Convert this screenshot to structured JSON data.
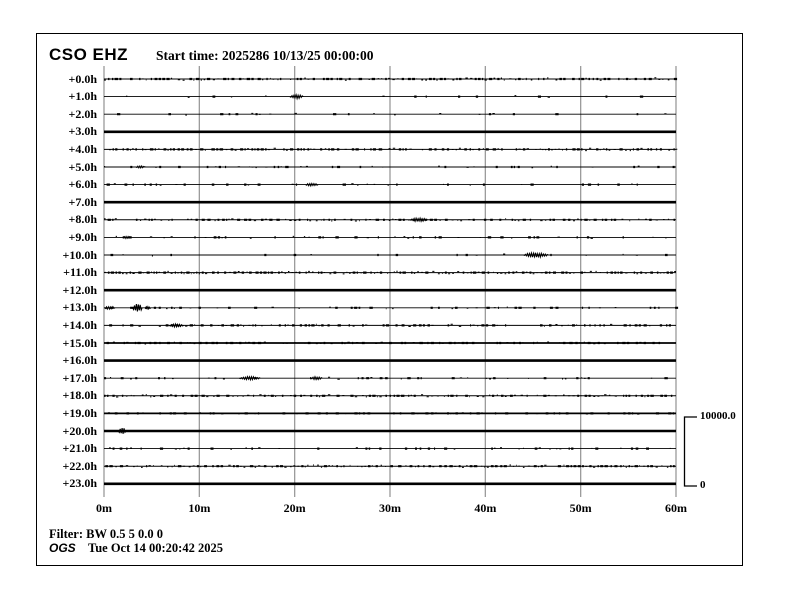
{
  "header": {
    "station": "CSO EHZ",
    "start_time_label": "Start time: 2025286 10/13/25 00:00:00"
  },
  "scale_bar": {
    "max_label": "10000.0",
    "min_label": "0"
  },
  "footer": {
    "filter_label": "Filter: BW 0.5 5 0.0 0",
    "agency": "OGS",
    "generated_at": "Tue Oct 14 00:20:42 2025"
  },
  "chart_data": {
    "type": "line",
    "subtype": "helicorder-24h",
    "title": "CSO EHZ",
    "start_time": "2025286 10/13/25 00:00:00",
    "x_ticks": [
      "0m",
      "10m",
      "20m",
      "30m",
      "40m",
      "50m",
      "60m"
    ],
    "x_range_minutes": [
      0,
      60
    ],
    "row_interval_hours": 1,
    "amplitude_scale": {
      "max": 10000.0,
      "min": 0
    },
    "grid": true,
    "legend_position": "none",
    "colors": {
      "trace": "#000000",
      "grid": "#9a9a9a",
      "background": "#ffffff"
    },
    "rows": [
      {
        "label": "+0.0h",
        "style": "noisy",
        "noise": 0.55,
        "amp": 1.2,
        "events": []
      },
      {
        "label": "+1.0h",
        "style": "thin",
        "noise": 0.06,
        "amp": 1.0,
        "events": [
          {
            "m": 20.2,
            "amp": 2.0,
            "w": 1.4
          }
        ]
      },
      {
        "label": "+2.0h",
        "style": "thin",
        "noise": 0.05,
        "amp": 1.0,
        "events": []
      },
      {
        "label": "+3.0h",
        "style": "bold",
        "noise": 0,
        "amp": 0,
        "events": []
      },
      {
        "label": "+4.0h",
        "style": "noisy",
        "noise": 0.5,
        "amp": 1.2,
        "events": []
      },
      {
        "label": "+5.0h",
        "style": "thin",
        "noise": 0.12,
        "amp": 1.0,
        "events": [
          {
            "m": 3.8,
            "amp": 1.2,
            "w": 0.9
          }
        ]
      },
      {
        "label": "+6.0h",
        "style": "thin",
        "noise": 0.12,
        "amp": 1.0,
        "events": [
          {
            "m": 21.8,
            "amp": 1.5,
            "w": 1.3
          }
        ]
      },
      {
        "label": "+7.0h",
        "style": "bold",
        "noise": 0,
        "amp": 0,
        "events": []
      },
      {
        "label": "+8.0h",
        "style": "noisy",
        "noise": 0.45,
        "amp": 1.2,
        "events": [
          {
            "m": 33.0,
            "amp": 1.8,
            "w": 1.8
          }
        ]
      },
      {
        "label": "+9.0h",
        "style": "thin",
        "noise": 0.1,
        "amp": 1.0,
        "events": [
          {
            "m": 2.4,
            "amp": 1.2,
            "w": 0.8
          }
        ]
      },
      {
        "label": "+10.0h",
        "style": "thin",
        "noise": 0.07,
        "amp": 1.0,
        "events": [
          {
            "m": 45.3,
            "amp": 2.3,
            "w": 2.6
          }
        ]
      },
      {
        "label": "+11.0h",
        "style": "noisy",
        "noise": 0.65,
        "amp": 1.3,
        "events": []
      },
      {
        "label": "+12.0h",
        "style": "bold",
        "noise": 0,
        "amp": 0,
        "events": []
      },
      {
        "label": "+13.0h",
        "style": "thin",
        "noise": 0.12,
        "amp": 1.0,
        "events": [
          {
            "m": 0.6,
            "amp": 1.5,
            "w": 1.1
          },
          {
            "m": 3.5,
            "amp": 5.0,
            "w": 1.0
          },
          {
            "m": 4.6,
            "amp": 1.2,
            "w": 0.6
          }
        ]
      },
      {
        "label": "+14.0h",
        "style": "noisy",
        "noise": 0.3,
        "amp": 1.1,
        "events": [
          {
            "m": 7.6,
            "amp": 1.6,
            "w": 1.5
          }
        ]
      },
      {
        "label": "+15.0h",
        "style": "medium",
        "noise": 0.35,
        "amp": 1.0,
        "events": []
      },
      {
        "label": "+16.0h",
        "style": "bold",
        "noise": 0,
        "amp": 0,
        "events": []
      },
      {
        "label": "+17.0h",
        "style": "thin",
        "noise": 0.08,
        "amp": 1.0,
        "events": [
          {
            "m": 15.3,
            "amp": 1.6,
            "w": 2.2
          },
          {
            "m": 22.3,
            "amp": 1.6,
            "w": 1.2
          }
        ]
      },
      {
        "label": "+18.0h",
        "style": "noisy",
        "noise": 0.5,
        "amp": 1.2,
        "events": []
      },
      {
        "label": "+19.0h",
        "style": "medium",
        "noise": 0.3,
        "amp": 0.8,
        "events": []
      },
      {
        "label": "+20.0h",
        "style": "bold",
        "noise": 0,
        "amp": 0,
        "events": [
          {
            "m": 1.9,
            "amp": 3.5,
            "w": 0.8
          }
        ]
      },
      {
        "label": "+21.0h",
        "style": "thin",
        "noise": 0.1,
        "amp": 1.0,
        "events": []
      },
      {
        "label": "+22.0h",
        "style": "noisy",
        "noise": 0.55,
        "amp": 1.2,
        "events": []
      },
      {
        "label": "+23.0h",
        "style": "bold",
        "noise": 0,
        "amp": 0,
        "events": []
      }
    ]
  }
}
